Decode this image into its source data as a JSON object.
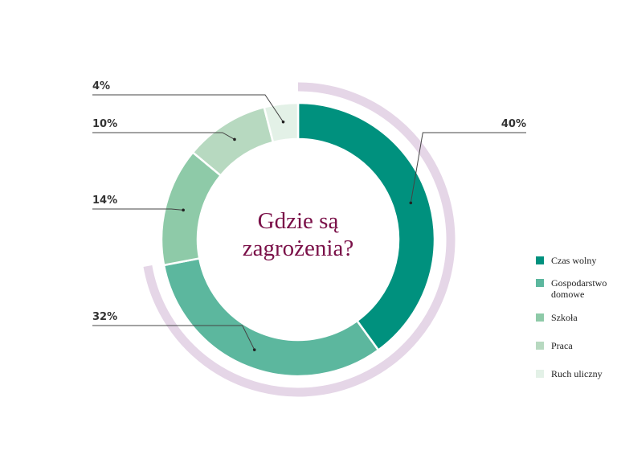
{
  "chart_data": {
    "type": "donut",
    "title": "Gdzie są zagrożenia?",
    "categories": [
      "Czas wolny",
      "Gospodarstwo domowe",
      "Szkoła",
      "Praca",
      "Ruch uliczny"
    ],
    "values": [
      40,
      32,
      14,
      10,
      4
    ],
    "value_labels": [
      "40%",
      "32%",
      "14%",
      "10%",
      "4%"
    ],
    "colors": [
      "#00917e",
      "#5cb79e",
      "#8ecaa8",
      "#b7d9c0",
      "#e3f1e7"
    ]
  }
}
